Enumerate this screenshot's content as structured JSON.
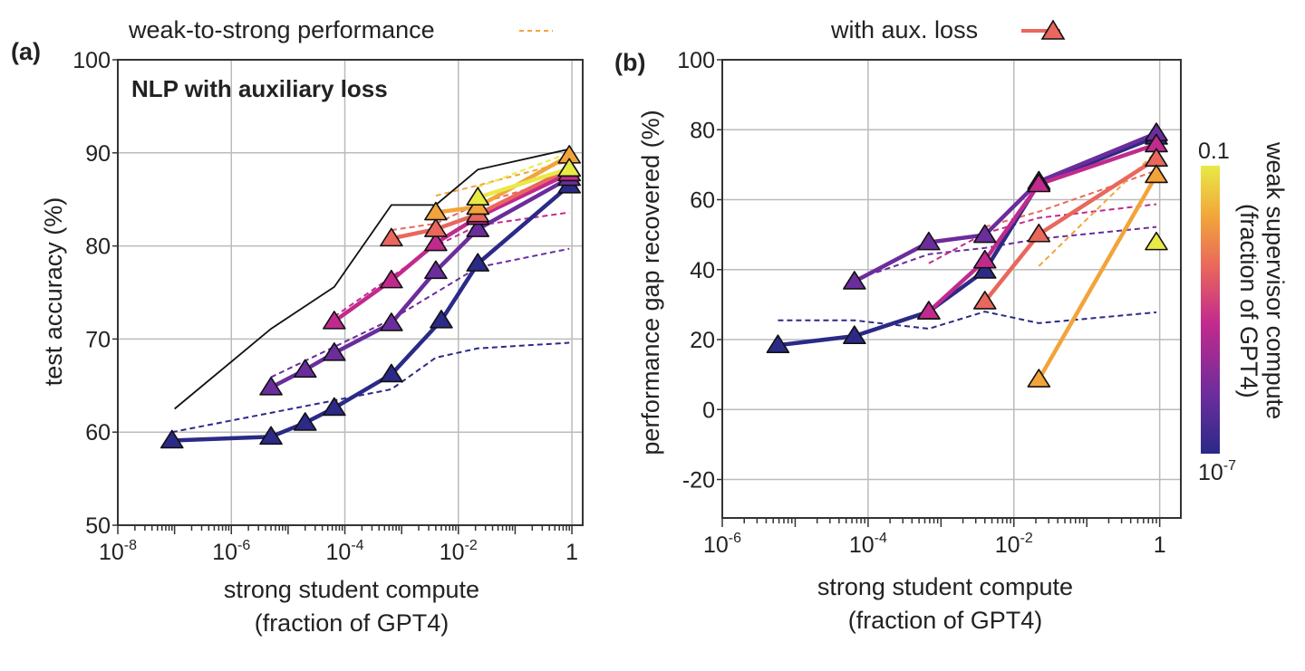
{
  "legend": {
    "dashed_label": "weak-to-strong performance",
    "solid_label": "with aux. loss"
  },
  "colorbar": {
    "label_line1": "weak supervisor compute",
    "label_line2": "(fraction of GPT4)",
    "max_label": "0.1",
    "min_label": "10-7",
    "colors": [
      "#2b2a86",
      "#6b2d9c",
      "#c12a8d",
      "#e9675c",
      "#f2a43a",
      "#e8ea45"
    ]
  },
  "colors": {
    "blue": "#2b2a86",
    "purple": "#6b2d9c",
    "magenta": "#c12a8d",
    "coral": "#e9675c",
    "orange": "#f2a43a",
    "yellow": "#e8ea45",
    "ceiling": "#111111"
  },
  "chart_data": [
    {
      "panel": "(a)",
      "type": "line",
      "title": "NLP with auxiliary loss",
      "xlabel_line1": "strong student compute",
      "xlabel_line2": "(fraction of GPT4)",
      "ylabel": "test accuracy (%)",
      "xscale": "log",
      "xlim": [
        1e-08,
        1.55
      ],
      "ylim": [
        50,
        100
      ],
      "xticks": [
        {
          "v": 1e-08,
          "base": "10",
          "exp": "-8"
        },
        {
          "v": 1e-06,
          "base": "10",
          "exp": "-6"
        },
        {
          "v": 0.0001,
          "base": "10",
          "exp": "-4"
        },
        {
          "v": 0.01,
          "base": "10",
          "exp": "-2"
        },
        {
          "v": 1,
          "base": "1",
          "exp": ""
        }
      ],
      "yticks": [
        50,
        60,
        70,
        80,
        90,
        100
      ],
      "grid": true,
      "ceiling": {
        "x": [
          1e-07,
          5e-06,
          6.5e-05,
          0.00066,
          0.004,
          0.022,
          0.9
        ],
        "y": [
          62.5,
          71.1,
          75.6,
          84.4,
          84.4,
          88.2,
          90.4
        ]
      },
      "series": [
        {
          "color": "blue",
          "x": [
            9e-08,
            5e-06,
            2e-05,
            6.5e-05,
            0.00066,
            0.005,
            0.022,
            0.9
          ],
          "y": [
            59.1,
            59.5,
            61.0,
            62.6,
            66.2,
            72.0,
            78.1,
            86.5
          ]
        },
        {
          "color": "purple",
          "x": [
            5e-06,
            2e-05,
            6.5e-05,
            0.00066,
            0.004,
            0.022,
            0.9
          ],
          "y": [
            64.8,
            66.7,
            68.5,
            71.7,
            77.3,
            81.8,
            87.3
          ]
        },
        {
          "color": "magenta",
          "x": [
            6.5e-05,
            0.00066,
            0.004,
            0.022,
            0.9
          ],
          "y": [
            71.9,
            76.3,
            80.3,
            83.1,
            87.8
          ]
        },
        {
          "color": "coral",
          "x": [
            0.00066,
            0.004,
            0.022,
            0.9
          ],
          "y": [
            80.8,
            81.8,
            83.4,
            88.3
          ]
        },
        {
          "color": "orange",
          "x": [
            0.004,
            0.022,
            0.9
          ],
          "y": [
            83.6,
            84.2,
            89.7
          ]
        },
        {
          "color": "yellow",
          "x": [
            0.022,
            0.9
          ],
          "y": [
            85.2,
            88.3
          ]
        }
      ],
      "weak_to_strong": [
        {
          "color": "blue",
          "x": [
            9e-08,
            0.00066,
            0.004,
            0.022,
            0.9
          ],
          "y": [
            60.0,
            64.6,
            68.0,
            69.0,
            69.6
          ]
        },
        {
          "color": "purple",
          "x": [
            5e-06,
            0.00066,
            0.022,
            0.9
          ],
          "y": [
            65.9,
            72.1,
            77.7,
            79.7
          ]
        },
        {
          "color": "magenta",
          "x": [
            6.5e-05,
            0.004,
            0.022,
            0.9
          ],
          "y": [
            72.4,
            80.0,
            82.2,
            83.6
          ]
        },
        {
          "color": "coral",
          "x": [
            0.00066,
            0.004,
            0.022,
            0.9
          ],
          "y": [
            81.7,
            82.4,
            84.5,
            87.5
          ]
        },
        {
          "color": "orange",
          "x": [
            0.004,
            0.022,
            0.9
          ],
          "y": [
            85.4,
            86.5,
            89.1
          ]
        },
        {
          "color": "yellow",
          "x": [
            0.022,
            0.9
          ],
          "y": [
            86.3,
            90.0
          ]
        }
      ]
    },
    {
      "panel": "(b)",
      "type": "line",
      "title": "",
      "xlabel_line1": "strong student compute",
      "xlabel_line2": "(fraction of GPT4)",
      "ylabel": "performance gap recovered (%)",
      "xscale": "log",
      "xlim": [
        1e-06,
        1.95
      ],
      "ylim": [
        -31,
        100
      ],
      "xticks": [
        {
          "v": 1e-06,
          "base": "10",
          "exp": "-6"
        },
        {
          "v": 0.0001,
          "base": "10",
          "exp": "-4"
        },
        {
          "v": 0.01,
          "base": "10",
          "exp": "-2"
        },
        {
          "v": 1,
          "base": "1",
          "exp": ""
        }
      ],
      "yticks": [
        -20,
        0,
        20,
        40,
        60,
        80,
        100
      ],
      "grid": true,
      "series": [
        {
          "color": "blue",
          "x": [
            5.8e-06,
            6.5e-05,
            0.00068,
            0.004,
            0.022,
            0.9
          ],
          "y": [
            18.4,
            21,
            28,
            39.7,
            64.7,
            78
          ]
        },
        {
          "color": "purple",
          "x": [
            6.5e-05,
            0.00068,
            0.004,
            0.022,
            0.9
          ],
          "y": [
            36.6,
            47.8,
            49.9,
            65.2,
            79
          ]
        },
        {
          "color": "magenta",
          "x": [
            0.00068,
            0.004,
            0.022,
            0.9
          ],
          "y": [
            28,
            42.6,
            64.4,
            75.8
          ]
        },
        {
          "color": "coral",
          "x": [
            0.004,
            0.022,
            0.9
          ],
          "y": [
            30.9,
            50.1,
            71.7
          ]
        },
        {
          "color": "orange",
          "x": [
            0.022,
            0.9
          ],
          "y": [
            8.6,
            67
          ]
        },
        {
          "color": "yellow",
          "x": [
            0.9
          ],
          "y": [
            47.8
          ]
        }
      ],
      "weak_to_strong": [
        {
          "color": "blue",
          "x": [
            5.8e-06,
            6.5e-05,
            0.00068,
            0.004,
            0.022,
            0.9
          ],
          "y": [
            25.5,
            25.5,
            23.1,
            28,
            24.7,
            27.8
          ]
        },
        {
          "color": "purple",
          "x": [
            0.00013,
            0.00068,
            0.004,
            0.022,
            0.9
          ],
          "y": [
            39.2,
            44.4,
            46.2,
            48.8,
            52.2
          ]
        },
        {
          "color": "magenta",
          "x": [
            0.00068,
            0.004,
            0.022,
            0.9
          ],
          "y": [
            41.8,
            50.4,
            54.8,
            58.7
          ]
        },
        {
          "color": "coral",
          "x": [
            0.004,
            0.022,
            0.9
          ],
          "y": [
            52.2,
            56.6,
            68.3
          ]
        },
        {
          "color": "orange",
          "x": [
            0.022,
            0.9
          ],
          "y": [
            41,
            73.8
          ]
        }
      ]
    }
  ]
}
